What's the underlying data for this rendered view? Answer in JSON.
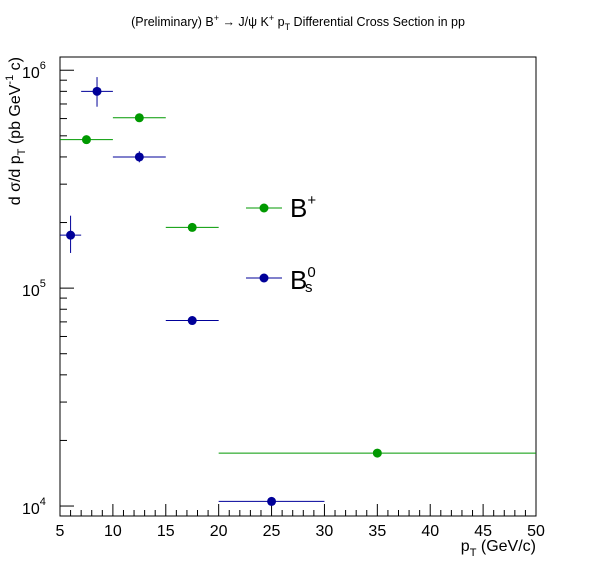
{
  "chart_data": {
    "type": "scatter",
    "title": "(Preliminary) B⁺ → J/ψ K⁺ p_T Differential Cross Section in pp",
    "title_parts": {
      "prefix": "(Preliminary) B",
      "sup1": "+",
      "mid": " → J/ψ K",
      "sup2": "+",
      "p": " p",
      "sub": "T",
      "suffix": " Differential Cross Section in pp"
    },
    "xlabel": "p_T (GeV/c)",
    "xlabel_parts": {
      "p": "p",
      "sub": "T",
      "rest": " (GeV/c)"
    },
    "ylabel": "d σ/d p_T (pb GeV⁻¹ c)",
    "ylabel_parts": {
      "a": "d σ/d p",
      "sub": "T",
      "b": " (pb GeV",
      "sup": "-1",
      "c": " c)"
    },
    "xlim": [
      5,
      50
    ],
    "ylim": [
      9000,
      1150000
    ],
    "yscale": "log",
    "grid": false,
    "legend_position": "center",
    "x_ticks": [
      5,
      10,
      15,
      20,
      25,
      30,
      35,
      40,
      45,
      50
    ],
    "x_tick_labels": [
      "5",
      "10",
      "15",
      "20",
      "25",
      "30",
      "35",
      "40",
      "45",
      "50"
    ],
    "y_major_ticks": [
      10000,
      100000,
      1000000
    ],
    "y_tick_labels": [
      {
        "base": "10",
        "exp": "4"
      },
      {
        "base": "10",
        "exp": "5"
      },
      {
        "base": "10",
        "exp": "6"
      }
    ],
    "series": [
      {
        "name": "B+",
        "legend_base": "B",
        "legend_sup": "+",
        "legend_sub": "",
        "color": "#009900",
        "points": [
          {
            "x": 7.5,
            "xlo": 5,
            "xhi": 10,
            "y": 480000,
            "ylo": 468000,
            "yhi": 492000
          },
          {
            "x": 12.5,
            "xlo": 10,
            "xhi": 15,
            "y": 605000,
            "ylo": 592000,
            "yhi": 618000
          },
          {
            "x": 17.5,
            "xlo": 15,
            "xhi": 20,
            "y": 190000,
            "ylo": 185000,
            "yhi": 195000
          },
          {
            "x": 35,
            "xlo": 20,
            "xhi": 50,
            "y": 17500,
            "ylo": 17000,
            "yhi": 18000
          }
        ]
      },
      {
        "name": "Bs0",
        "legend_base": "B",
        "legend_sup": "0",
        "legend_sub": "s",
        "color": "#000099",
        "points": [
          {
            "x": 6,
            "xlo": 5,
            "xhi": 7,
            "y": 175000,
            "ylo": 145000,
            "yhi": 215000
          },
          {
            "x": 8.5,
            "xlo": 7,
            "xhi": 10,
            "y": 800000,
            "ylo": 680000,
            "yhi": 930000
          },
          {
            "x": 12.5,
            "xlo": 10,
            "xhi": 15,
            "y": 400000,
            "ylo": 378000,
            "yhi": 425000
          },
          {
            "x": 17.5,
            "xlo": 15,
            "xhi": 20,
            "y": 71000,
            "ylo": 68500,
            "yhi": 73500
          },
          {
            "x": 25,
            "xlo": 20,
            "xhi": 30,
            "y": 10500,
            "ylo": 10000,
            "yhi": 11000
          }
        ]
      }
    ]
  }
}
